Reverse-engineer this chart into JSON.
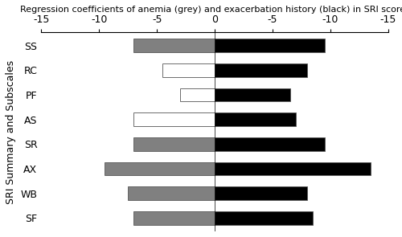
{
  "title": "Regression coefficients of anemia (grey) and exacerbation history (black) in SRI scores",
  "ylabel": "SRI Summary and Subscales",
  "categories": [
    "SS",
    "RC",
    "PF",
    "AS",
    "SR",
    "AX",
    "WB",
    "SF"
  ],
  "anemia_values": [
    -7.0,
    -4.5,
    -3.0,
    -7.0,
    -7.0,
    -9.5,
    -7.5,
    -7.0
  ],
  "exacerbation_values": [
    9.5,
    8.0,
    6.5,
    7.0,
    9.5,
    13.5,
    8.0,
    8.5
  ],
  "anemia_colors": [
    "#808080",
    "#ffffff",
    "#ffffff",
    "#ffffff",
    "#808080",
    "#808080",
    "#808080",
    "#808080"
  ],
  "exacerbation_color": "#000000",
  "bar_height": 0.55,
  "xlim_left": -15,
  "xlim_right": 15,
  "title_fontsize": 8.0,
  "label_fontsize": 9,
  "tick_fontsize": 9
}
